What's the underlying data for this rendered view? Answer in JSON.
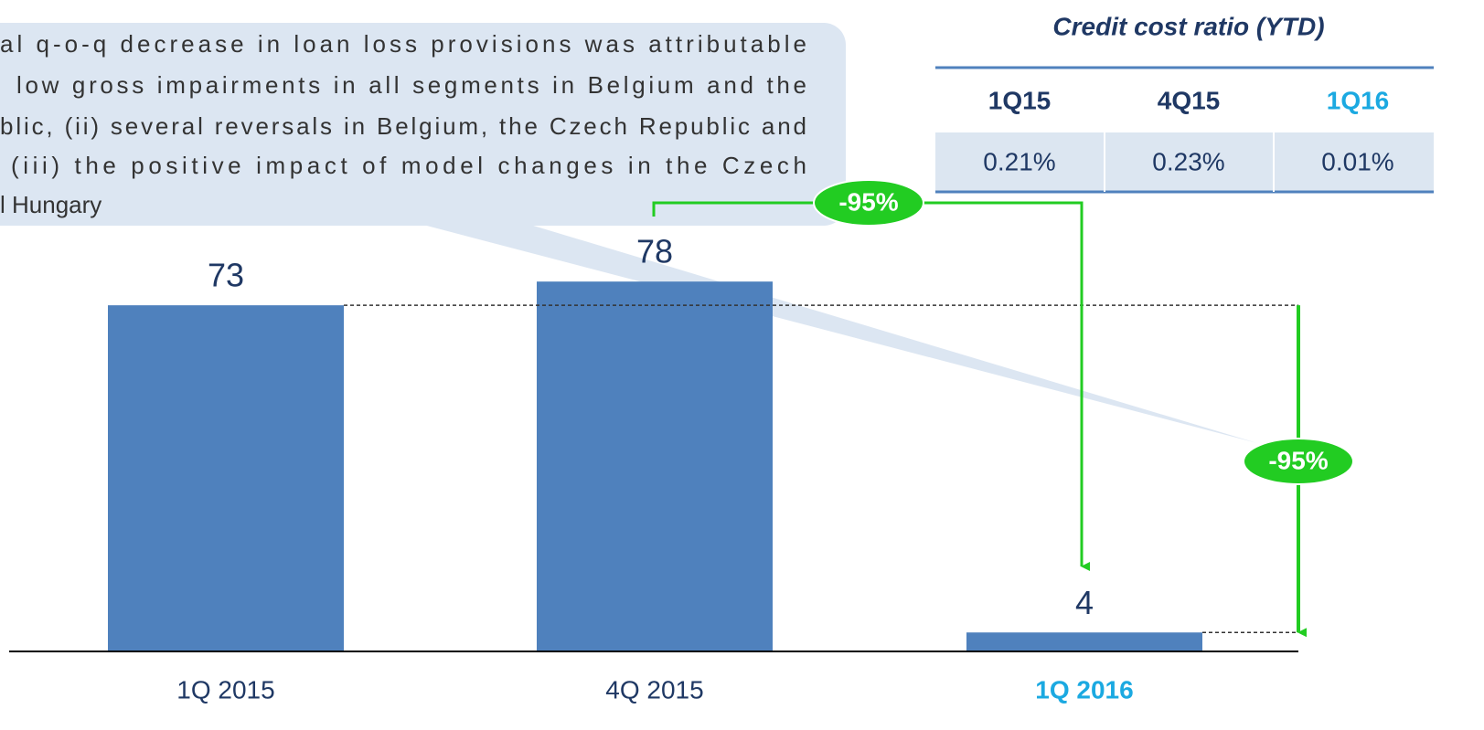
{
  "chart_data": {
    "type": "bar",
    "callout": [
      "al q-o-q decrease in loan loss provisions was attributable",
      "low gross impairments in all segments in Belgium and the",
      "blic, (ii) several reversals in Belgium, the Czech Republic and",
      "(iii) the positive impact of model changes in the Czech",
      "l Hungary"
    ],
    "categories": [
      "1Q 2015",
      "4Q 2015",
      "1Q 2016"
    ],
    "values": [
      73,
      78,
      4
    ],
    "color": "#4f81bd",
    "highlight_index": 2,
    "highlight_color": "#1ba9e1",
    "annotations": [
      "-95%",
      "-95%"
    ],
    "annotation_color": "#22cc22",
    "table": {
      "title": "Credit cost ratio (YTD)",
      "columns": [
        "1Q15",
        "4Q15",
        "1Q16"
      ],
      "values": [
        0.21,
        0.23,
        0.01
      ],
      "value_labels": [
        "0.21%",
        "0.23%",
        "0.01%"
      ]
    }
  }
}
